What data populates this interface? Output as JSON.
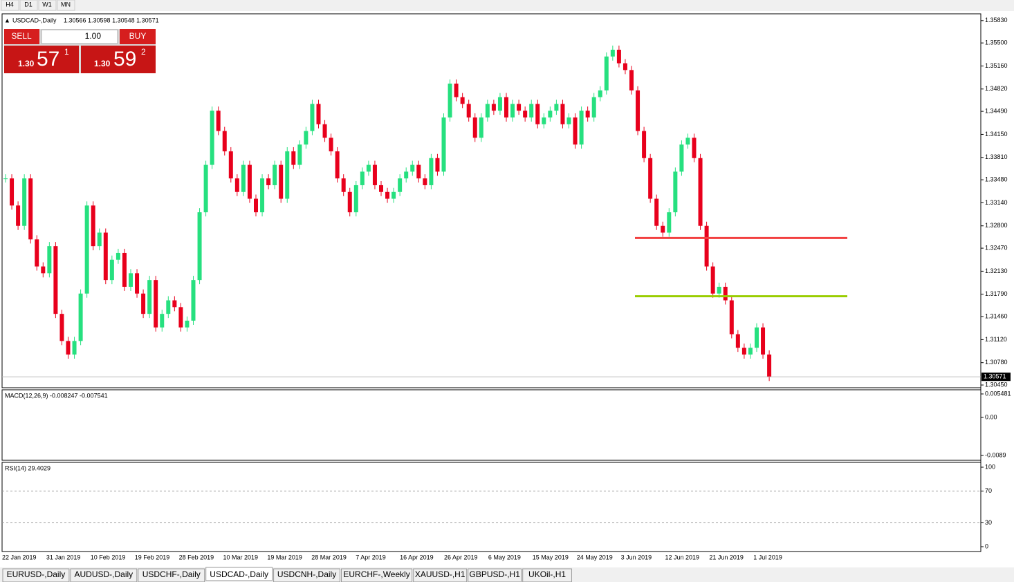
{
  "toolbar": {
    "periods": [
      "H4",
      "D1",
      "W1",
      "MN"
    ]
  },
  "header": {
    "symbol": "USDCAD-,Daily",
    "quotes": "1.30566 1.30598 1.30548 1.30571"
  },
  "trade_panel": {
    "sell": "SELL",
    "buy": "BUY",
    "lot": "1.00",
    "sell_price": {
      "big": "1.30",
      "main": "57",
      "sup": "1"
    },
    "buy_price": {
      "big": "1.30",
      "main": "59",
      "sup": "2"
    }
  },
  "chart_data": {
    "type": "candlestick",
    "closes": [
      1.335,
      1.331,
      1.328,
      1.335,
      1.326,
      1.322,
      1.321,
      1.325,
      1.315,
      1.311,
      1.309,
      1.311,
      1.318,
      1.331,
      1.325,
      1.327,
      1.32,
      1.323,
      1.324,
      1.319,
      1.321,
      1.318,
      1.315,
      1.32,
      1.313,
      1.315,
      1.317,
      1.316,
      1.313,
      1.314,
      1.32,
      1.33,
      1.337,
      1.345,
      1.342,
      1.339,
      1.335,
      1.333,
      1.337,
      1.332,
      1.33,
      1.335,
      1.334,
      1.337,
      1.332,
      1.339,
      1.337,
      1.34,
      1.342,
      1.346,
      1.343,
      1.341,
      1.339,
      1.335,
      1.333,
      1.33,
      1.334,
      1.336,
      1.337,
      1.334,
      1.333,
      1.332,
      1.333,
      1.335,
      1.336,
      1.337,
      1.335,
      1.334,
      1.338,
      1.336,
      1.344,
      1.349,
      1.347,
      1.346,
      1.344,
      1.341,
      1.344,
      1.346,
      1.345,
      1.347,
      1.344,
      1.346,
      1.345,
      1.344,
      1.346,
      1.343,
      1.344,
      1.345,
      1.346,
      1.343,
      1.344,
      1.34,
      1.345,
      1.344,
      1.347,
      1.348,
      1.353,
      1.354,
      1.352,
      1.351,
      1.348,
      1.342,
      1.338,
      1.332,
      1.328,
      1.327,
      1.33,
      1.336,
      1.34,
      1.341,
      1.338,
      1.328,
      1.322,
      1.318,
      1.319,
      1.317,
      1.312,
      1.31,
      1.309,
      1.31,
      1.313,
      1.309,
      1.3057
    ],
    "up_color": "#26e07f",
    "down_color": "#e8001c",
    "ylim": [
      1.3042,
      1.3593
    ],
    "yticks": [
      {
        "value": 1.3583,
        "label": "1.35830"
      },
      {
        "value": 1.355,
        "label": "1.35500"
      },
      {
        "value": 1.3516,
        "label": "1.35160"
      },
      {
        "value": 1.3482,
        "label": "1.34820"
      },
      {
        "value": 1.3449,
        "label": "1.34490"
      },
      {
        "value": 1.3415,
        "label": "1.34150"
      },
      {
        "value": 1.3381,
        "label": "1.33810"
      },
      {
        "value": 1.3348,
        "label": "1.33480"
      },
      {
        "value": 1.3314,
        "label": "1.33140"
      },
      {
        "value": 1.328,
        "label": "1.32800"
      },
      {
        "value": 1.3247,
        "label": "1.32470"
      },
      {
        "value": 1.3213,
        "label": "1.32130"
      },
      {
        "value": 1.3179,
        "label": "1.31790"
      },
      {
        "value": 1.3146,
        "label": "1.31460"
      },
      {
        "value": 1.3112,
        "label": "1.31120"
      },
      {
        "value": 1.3078,
        "label": "1.30780"
      },
      {
        "value": 1.3045,
        "label": "1.30450"
      }
    ],
    "current": {
      "value": 1.30571,
      "label": "1.30571"
    },
    "levels": [
      {
        "value": 1.3262,
        "color": "#f24040"
      },
      {
        "value": 1.3176,
        "color": "#9acd00"
      }
    ],
    "dates": [
      "22 Jan 2019",
      "31 Jan 2019",
      "10 Feb 2019",
      "19 Feb 2019",
      "28 Feb 2019",
      "10 Mar 2019",
      "19 Mar 2019",
      "28 Mar 2019",
      "7 Apr 2019",
      "16 Apr 2019",
      "26 Apr 2019",
      "6 May 2019",
      "15 May 2019",
      "24 May 2019",
      "3 Jun 2019",
      "12 Jun 2019",
      "21 Jun 2019",
      "1 Jul 2019"
    ]
  },
  "macd": {
    "label": "MACD(12,26,9) -0.008247 -0.007541",
    "ylim": [
      -0.0089,
      0.005481
    ],
    "yticks": [
      0.005481,
      {
        "value": 0,
        "label": "0.00"
      },
      -0.0089
    ]
  },
  "rsi": {
    "label": "RSI(14) 29.4029",
    "ylim": [
      0,
      100
    ],
    "yticks": [
      100,
      70,
      30,
      0
    ]
  },
  "tabs": [
    "EURUSD-,Daily",
    "AUDUSD-,Daily",
    "USDCHF-,Daily",
    "USDCAD-,Daily",
    "USDCNH-,Daily",
    "EURCHF-,Weekly",
    "XAUUSD-,H1",
    "GBPUSD-,H1",
    "UKOil-,H1"
  ]
}
